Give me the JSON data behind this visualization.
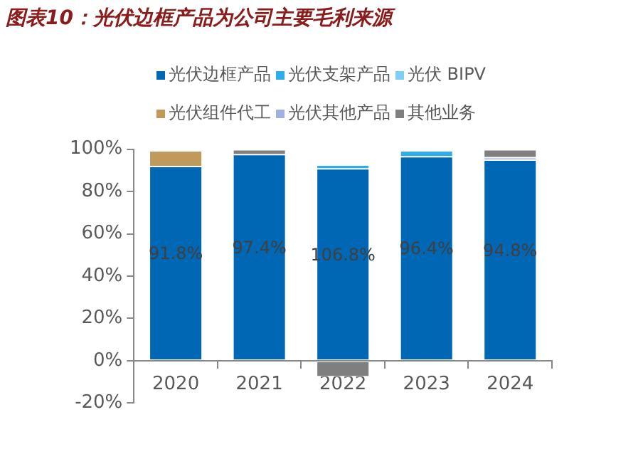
{
  "chart_data": {
    "type": "bar",
    "title": "图表10：光伏边框产品为公司主要毛利来源",
    "categories": [
      "2020",
      "2021",
      "2022",
      "2023",
      "2024"
    ],
    "stacked": true,
    "legend": "top",
    "ylim": [
      -20,
      100
    ],
    "yticks": [
      {
        "value": -20,
        "label": "-20%"
      },
      {
        "value": 0,
        "label": "0%"
      },
      {
        "value": 20,
        "label": "20%"
      },
      {
        "value": 40,
        "label": "40%"
      },
      {
        "value": 60,
        "label": "60%"
      },
      {
        "value": 80,
        "label": "80%"
      },
      {
        "value": 100,
        "label": "100%"
      }
    ],
    "annotations": [
      "91.8%",
      "97.4%",
      "106.8%",
      "96.4%",
      "94.8%"
    ],
    "series": [
      {
        "name": "光伏边框产品",
        "color": "#0067b4",
        "values": [
          91.8,
          97.4,
          90.7,
          96.4,
          94.8
        ]
      },
      {
        "name": "光伏支架产品",
        "color": "#2eaee8",
        "values": [
          null,
          null,
          1.8,
          2.8,
          null
        ]
      },
      {
        "name": "光伏 BIPV",
        "color": "#7ecff4",
        "values": [
          null,
          null,
          null,
          null,
          null
        ]
      },
      {
        "name": "光伏组件代工",
        "color": "#c09a5b",
        "values": [
          7.4,
          null,
          null,
          null,
          null
        ]
      },
      {
        "name": "光伏其他产品",
        "color": "#9fb2dc",
        "values": [
          null,
          null,
          null,
          null,
          1.2
        ]
      },
      {
        "name": "其他业务",
        "color": "#7f7f7f",
        "values": [
          null,
          2.3,
          -7.5,
          null,
          3.7
        ]
      }
    ]
  }
}
